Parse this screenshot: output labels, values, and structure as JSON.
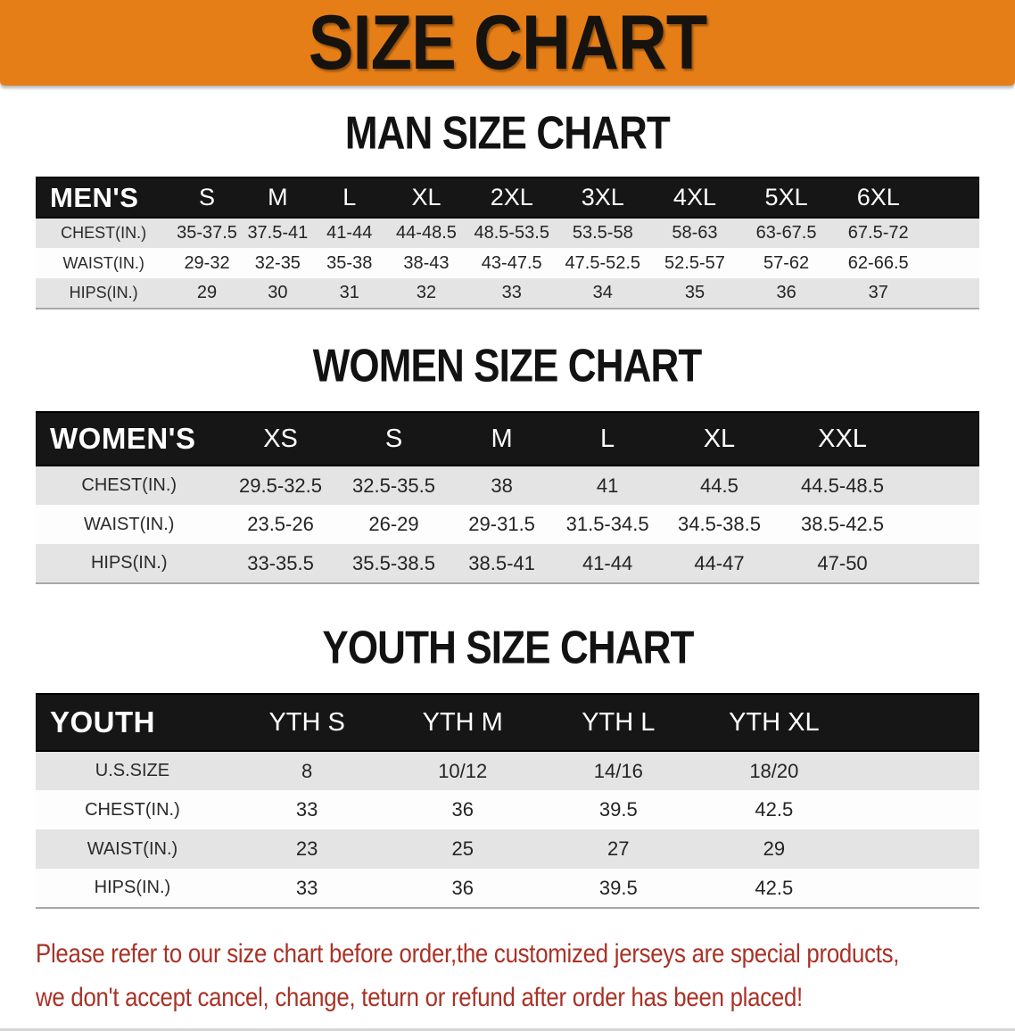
{
  "banner": {
    "title": "SIZE CHART",
    "background_color": "#e67e17",
    "text_color": "#16120e"
  },
  "sections": {
    "men": {
      "title": "MAN SIZE CHART",
      "table": {
        "header": [
          "MEN'S",
          "S",
          "M",
          "L",
          "XL",
          "2XL",
          "3XL",
          "4XL",
          "5XL",
          "6XL"
        ],
        "rows": [
          [
            "CHEST(IN.)",
            "35-37.5",
            "37.5-41",
            "41-44",
            "44-48.5",
            "48.5-53.5",
            "53.5-58",
            "58-63",
            "63-67.5",
            "67.5-72"
          ],
          [
            "WAIST(IN.)",
            "29-32",
            "32-35",
            "35-38",
            "38-43",
            "43-47.5",
            "47.5-52.5",
            "52.5-57",
            "57-62",
            "62-66.5"
          ],
          [
            "HIPS(IN.)",
            "29",
            "30",
            "31",
            "32",
            "33",
            "34",
            "35",
            "36",
            "37"
          ]
        ]
      }
    },
    "women": {
      "title": "WOMEN SIZE CHART",
      "table": {
        "header": [
          "WOMEN'S",
          "XS",
          "S",
          "M",
          "L",
          "XL",
          "XXL"
        ],
        "rows": [
          [
            "CHEST(IN.)",
            "29.5-32.5",
            "32.5-35.5",
            "38",
            "41",
            "44.5",
            "44.5-48.5"
          ],
          [
            "WAIST(IN.)",
            "23.5-26",
            "26-29",
            "29-31.5",
            "31.5-34.5",
            "34.5-38.5",
            "38.5-42.5"
          ],
          [
            "HIPS(IN.)",
            "33-35.5",
            "35.5-38.5",
            "38.5-41",
            "41-44",
            "44-47",
            "47-50"
          ]
        ]
      }
    },
    "youth": {
      "title": "YOUTH SIZE CHART",
      "table": {
        "header": [
          "YOUTH",
          "YTH S",
          "YTH M",
          "YTH L",
          "YTH XL"
        ],
        "rows": [
          [
            "U.S.SIZE",
            "8",
            "10/12",
            "14/16",
            "18/20"
          ],
          [
            "CHEST(IN.)",
            "33",
            "36",
            "39.5",
            "42.5"
          ],
          [
            "WAIST(IN.)",
            "23",
            "25",
            "27",
            "29"
          ],
          [
            "HIPS(IN.)",
            "33",
            "36",
            "39.5",
            "42.5"
          ]
        ]
      }
    }
  },
  "disclaimer": {
    "line1": "Please refer to our size chart before order,the customized jerseys are special products,",
    "line2": "we don't accept cancel, change, teturn or refund after order has been placed!",
    "text_color": "#a93226"
  },
  "colors": {
    "banner_orange": "#e67e17",
    "header_bar_black": "#161616",
    "row_stripe_gray": "#e4e4e4",
    "disclaimer_red": "#a93226"
  }
}
